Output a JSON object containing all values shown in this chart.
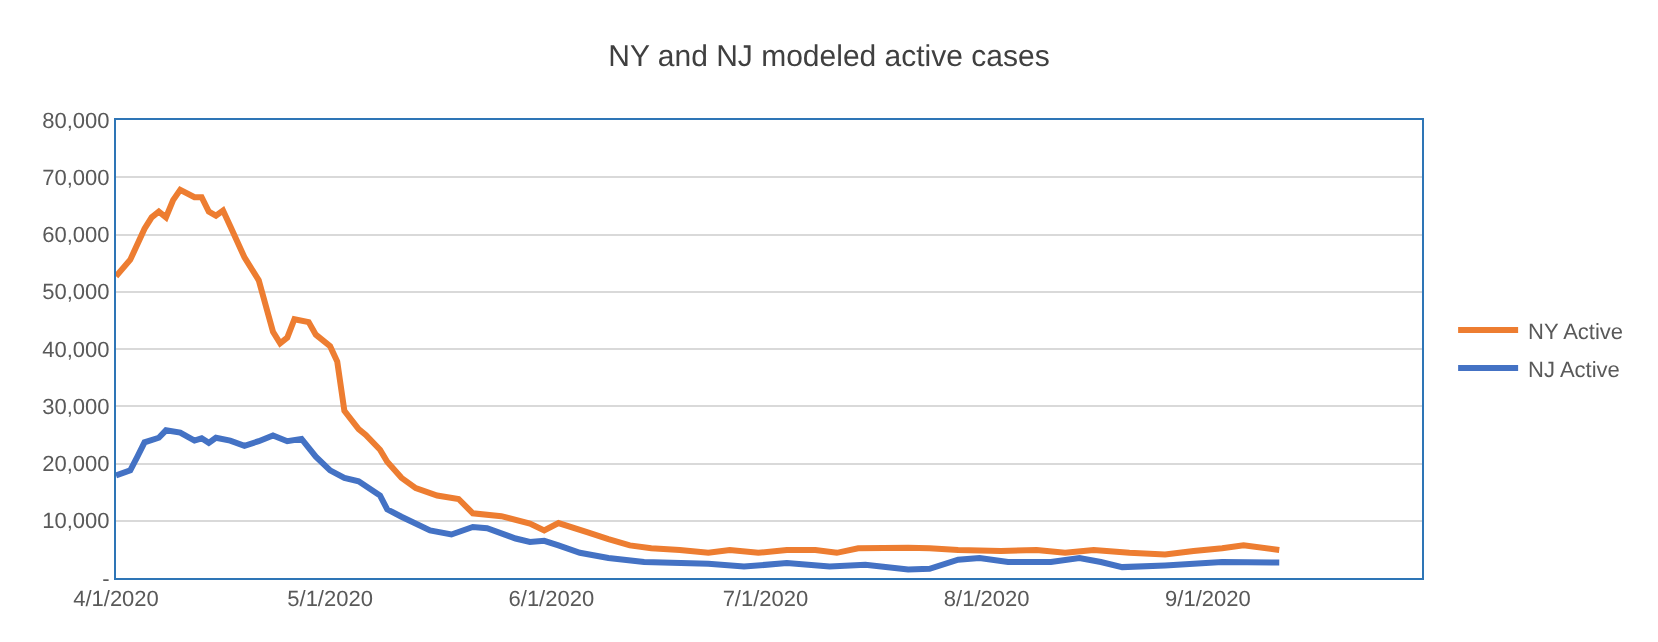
{
  "chart_data": {
    "type": "line",
    "title": "NY and NJ modeled active cases",
    "xlim": [
      "2020-04-01",
      "2020-10-01"
    ],
    "xticks": [
      {
        "value": "2020-04-01",
        "label": "4/1/2020"
      },
      {
        "value": "2020-05-01",
        "label": "5/1/2020"
      },
      {
        "value": "2020-06-01",
        "label": "6/1/2020"
      },
      {
        "value": "2020-07-01",
        "label": "7/1/2020"
      },
      {
        "value": "2020-08-01",
        "label": "8/1/2020"
      },
      {
        "value": "2020-09-01",
        "label": "9/1/2020"
      }
    ],
    "ylim": [
      0,
      80000
    ],
    "yticks": [
      {
        "value": 0,
        "label": "-"
      },
      {
        "value": 10000,
        "label": "10,000"
      },
      {
        "value": 20000,
        "label": "20,000"
      },
      {
        "value": 30000,
        "label": "30,000"
      },
      {
        "value": 40000,
        "label": "40,000"
      },
      {
        "value": 50000,
        "label": "50,000"
      },
      {
        "value": 60000,
        "label": "60,000"
      },
      {
        "value": 70000,
        "label": "70,000"
      },
      {
        "value": 80000,
        "label": "80,000"
      }
    ],
    "grid": "y",
    "legend": "right",
    "marker": "none",
    "line_style": "solid",
    "series": [
      {
        "name": "NY Active",
        "color": "#ed7d31",
        "x": [
          "2020-04-01",
          "2020-04-03",
          "2020-04-05",
          "2020-04-06",
          "2020-04-07",
          "2020-04-08",
          "2020-04-09",
          "2020-04-10",
          "2020-04-12",
          "2020-04-13",
          "2020-04-14",
          "2020-04-15",
          "2020-04-16",
          "2020-04-17",
          "2020-04-19",
          "2020-04-21",
          "2020-04-23",
          "2020-04-24",
          "2020-04-25",
          "2020-04-26",
          "2020-04-28",
          "2020-04-29",
          "2020-05-01",
          "2020-05-02",
          "2020-05-03",
          "2020-05-05",
          "2020-05-06",
          "2020-05-08",
          "2020-05-09",
          "2020-05-11",
          "2020-05-13",
          "2020-05-16",
          "2020-05-19",
          "2020-05-21",
          "2020-05-25",
          "2020-05-29",
          "2020-05-31",
          "2020-06-02",
          "2020-06-06",
          "2020-06-09",
          "2020-06-12",
          "2020-06-15",
          "2020-06-19",
          "2020-06-23",
          "2020-06-26",
          "2020-06-30",
          "2020-07-04",
          "2020-07-08",
          "2020-07-11",
          "2020-07-14",
          "2020-07-21",
          "2020-07-24",
          "2020-07-28",
          "2020-08-03",
          "2020-08-08",
          "2020-08-12",
          "2020-08-16",
          "2020-08-21",
          "2020-08-26",
          "2020-08-30",
          "2020-09-03",
          "2020-09-06",
          "2020-09-11"
        ],
        "values": [
          52700,
          55600,
          61000,
          63000,
          64000,
          63000,
          66000,
          67800,
          66500,
          66500,
          64000,
          63300,
          64200,
          61500,
          56000,
          52000,
          43000,
          41000,
          42000,
          45200,
          44700,
          42500,
          40500,
          37800,
          29200,
          26000,
          25000,
          22400,
          20300,
          17500,
          15700,
          14400,
          13800,
          11300,
          10800,
          9500,
          8300,
          9600,
          8000,
          6800,
          5700,
          5200,
          4900,
          4400,
          4900,
          4400,
          4900,
          4900,
          4400,
          5200,
          5300,
          5200,
          4900,
          4700,
          4900,
          4400,
          4900,
          4400,
          4100,
          4700,
          5200,
          5700,
          4900
        ]
      },
      {
        "name": "NJ Active",
        "color": "#4472c4",
        "x": [
          "2020-04-01",
          "2020-04-03",
          "2020-04-04",
          "2020-04-05",
          "2020-04-07",
          "2020-04-08",
          "2020-04-10",
          "2020-04-12",
          "2020-04-13",
          "2020-04-14",
          "2020-04-15",
          "2020-04-17",
          "2020-04-19",
          "2020-04-21",
          "2020-04-23",
          "2020-04-25",
          "2020-04-27",
          "2020-04-29",
          "2020-05-01",
          "2020-05-03",
          "2020-05-05",
          "2020-05-08",
          "2020-05-09",
          "2020-05-11",
          "2020-05-15",
          "2020-05-18",
          "2020-05-21",
          "2020-05-23",
          "2020-05-27",
          "2020-05-29",
          "2020-05-31",
          "2020-06-02",
          "2020-06-05",
          "2020-06-09",
          "2020-06-14",
          "2020-06-23",
          "2020-06-28",
          "2020-07-04",
          "2020-07-10",
          "2020-07-15",
          "2020-07-21",
          "2020-07-24",
          "2020-07-28",
          "2020-07-31",
          "2020-08-04",
          "2020-08-10",
          "2020-08-14",
          "2020-08-17",
          "2020-08-20",
          "2020-08-26",
          "2020-09-03",
          "2020-09-11"
        ],
        "values": [
          17900,
          18800,
          21200,
          23700,
          24500,
          25800,
          25400,
          24000,
          24400,
          23600,
          24500,
          24000,
          23100,
          23900,
          24900,
          23900,
          24300,
          21200,
          18800,
          17500,
          16900,
          14400,
          12000,
          10700,
          8300,
          7600,
          8900,
          8700,
          6900,
          6300,
          6500,
          5700,
          4400,
          3500,
          2800,
          2500,
          2000,
          2600,
          2000,
          2300,
          1500,
          1600,
          3200,
          3500,
          2800,
          2800,
          3500,
          2800,
          1900,
          2200,
          2800,
          2700
        ]
      }
    ]
  }
}
